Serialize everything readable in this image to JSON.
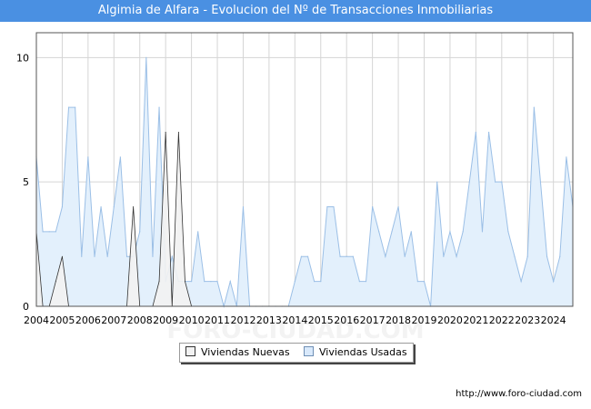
{
  "title": "Algimia de Alfara - Evolucion del Nº de Transacciones Inmobiliarias",
  "watermark": "FORO-CIUDAD.COM",
  "credit": "http://www.foro-ciudad.com",
  "colors": {
    "title_bg": "#4a90e2",
    "nuevas_fill": "#f2f2f2",
    "nuevas_line": "#333333",
    "usadas_fill": "#e3f0fc",
    "usadas_line": "#9bbfe6",
    "grid": "#d5d5d5"
  },
  "legend": {
    "nuevas": "Viviendas Nuevas",
    "usadas": "Viviendas Usadas"
  },
  "chart_data": {
    "type": "area",
    "x_start": 2004,
    "x_end": 2024.75,
    "x_step": 0.25,
    "xticks": [
      "2004",
      "2005",
      "2006",
      "2007",
      "2008",
      "2009",
      "2010",
      "2011",
      "2012",
      "2013",
      "2014",
      "2015",
      "2016",
      "2017",
      "2018",
      "2019",
      "2020",
      "2021",
      "2022",
      "2023",
      "2024"
    ],
    "yticks": [
      "0",
      "5",
      "10"
    ],
    "ylim": [
      0,
      11
    ],
    "series": [
      {
        "name": "Viviendas Nuevas",
        "values": [
          3,
          0,
          0,
          1,
          2,
          0,
          0,
          0,
          0,
          0,
          0,
          0,
          0,
          0,
          0,
          4,
          0,
          0,
          0,
          1,
          7,
          0,
          7,
          1,
          0,
          0,
          0,
          0,
          0,
          0,
          0,
          0,
          0,
          0,
          0,
          0,
          0,
          0,
          0,
          0,
          0,
          0,
          0,
          0,
          0,
          0,
          0,
          0,
          0,
          0,
          0,
          0,
          0,
          0,
          0,
          0,
          0,
          0,
          0,
          0,
          0,
          0,
          0,
          0,
          0,
          0,
          0,
          0,
          0,
          0,
          0,
          0,
          0,
          0,
          0,
          0,
          0,
          0,
          0,
          0,
          0,
          0,
          0,
          0
        ]
      },
      {
        "name": "Viviendas Usadas",
        "values": [
          6,
          3,
          3,
          3,
          4,
          8,
          8,
          2,
          6,
          2,
          4,
          2,
          4,
          6,
          2,
          2,
          3,
          10,
          2,
          8,
          1,
          2,
          1,
          1,
          1,
          3,
          1,
          1,
          1,
          0,
          1,
          0,
          4,
          0,
          0,
          0,
          0,
          0,
          0,
          0,
          1,
          2,
          2,
          1,
          1,
          4,
          4,
          2,
          2,
          2,
          1,
          1,
          4,
          3,
          2,
          3,
          4,
          2,
          3,
          1,
          1,
          0,
          5,
          2,
          3,
          2,
          3,
          5,
          7,
          3,
          7,
          5,
          5,
          3,
          2,
          1,
          2,
          8,
          5,
          2,
          1,
          2,
          6,
          4
        ]
      }
    ]
  }
}
